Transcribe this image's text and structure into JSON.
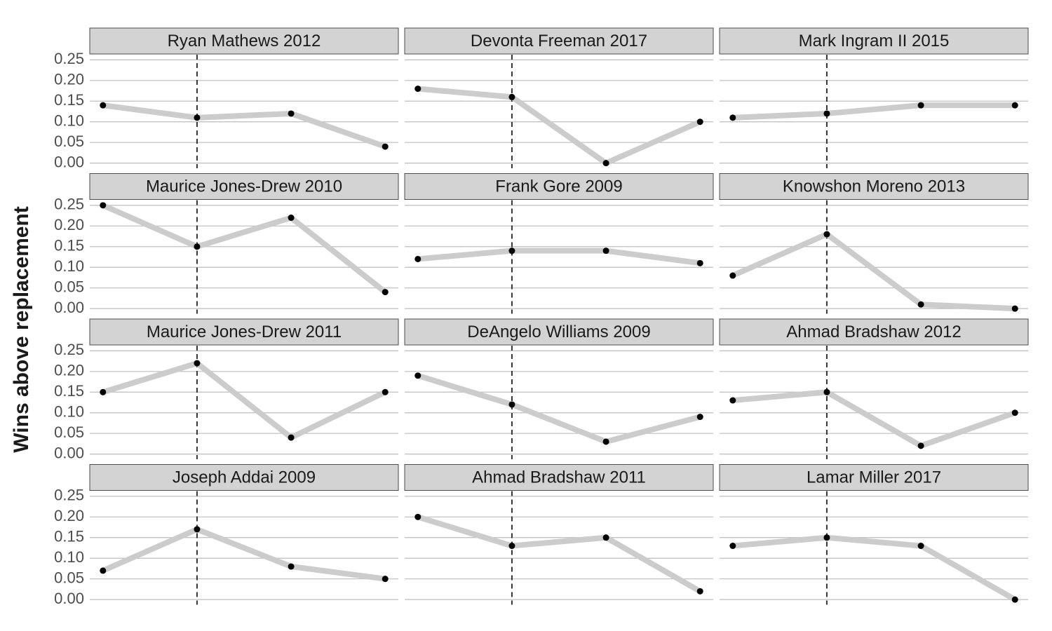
{
  "ylabel": "Wins above replacement",
  "ylim": [
    -0.0125,
    0.2625
  ],
  "yticks": [
    {
      "value": 0,
      "label": "0.00"
    },
    {
      "value": 0.05,
      "label": "0.05"
    },
    {
      "value": 0.1,
      "label": "0.10"
    },
    {
      "value": 0.15,
      "label": "0.15"
    },
    {
      "value": 0.2,
      "label": "0.20"
    },
    {
      "value": 0.25,
      "label": "0.25"
    }
  ],
  "x": [
    1,
    2,
    3,
    4
  ],
  "xlim": [
    0.86,
    4.14
  ],
  "vline": 2,
  "grid": true,
  "line_color": "#cccccc",
  "point_color": "#000000",
  "chart_data": [
    {
      "type": "line",
      "title": "Ryan Mathews 2012",
      "values": [
        0.14,
        0.11,
        0.12,
        0.04
      ]
    },
    {
      "type": "line",
      "title": "Devonta Freeman 2017",
      "values": [
        0.18,
        0.16,
        0,
        0.1
      ]
    },
    {
      "type": "line",
      "title": "Mark Ingram II 2015",
      "values": [
        0.11,
        0.12,
        0.14,
        0.14
      ]
    },
    {
      "type": "line",
      "title": "Maurice Jones-Drew 2010",
      "values": [
        0.25,
        0.15,
        0.22,
        0.04
      ]
    },
    {
      "type": "line",
      "title": "Frank Gore 2009",
      "values": [
        0.12,
        0.14,
        0.14,
        0.11
      ]
    },
    {
      "type": "line",
      "title": "Knowshon Moreno 2013",
      "values": [
        0.08,
        0.18,
        0.01,
        0
      ]
    },
    {
      "type": "line",
      "title": "Maurice Jones-Drew 2011",
      "values": [
        0.15,
        0.22,
        0.04,
        0.15
      ]
    },
    {
      "type": "line",
      "title": "DeAngelo Williams 2009",
      "values": [
        0.19,
        0.12,
        0.03,
        0.09
      ]
    },
    {
      "type": "line",
      "title": "Ahmad Bradshaw 2012",
      "values": [
        0.13,
        0.15,
        0.02,
        0.1
      ]
    },
    {
      "type": "line",
      "title": "Joseph Addai 2009",
      "values": [
        0.07,
        0.17,
        0.08,
        0.05
      ]
    },
    {
      "type": "line",
      "title": "Ahmad Bradshaw 2011",
      "values": [
        0.2,
        0.13,
        0.15,
        0.02
      ]
    },
    {
      "type": "line",
      "title": "Lamar Miller 2017",
      "values": [
        0.13,
        0.15,
        0.13,
        0
      ]
    }
  ]
}
